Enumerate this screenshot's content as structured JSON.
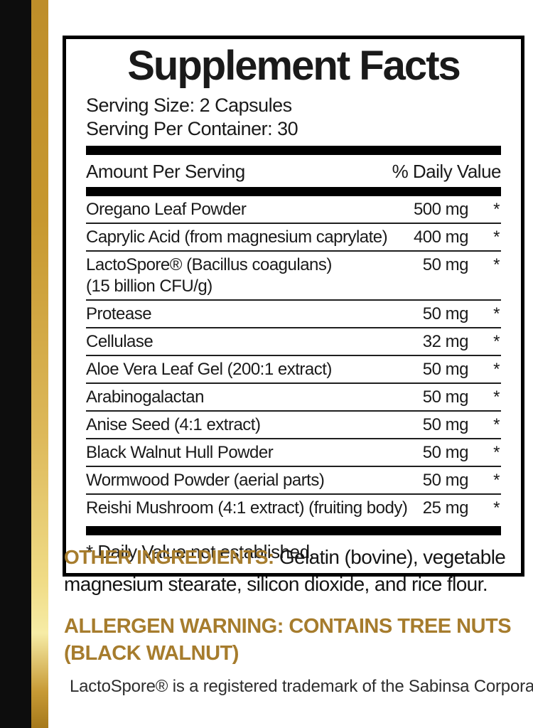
{
  "panel": {
    "title": "Supplement Facts",
    "serving_size": "Serving Size: 2 Capsules",
    "servings_per_container": "Serving Per Container: 30",
    "columns": {
      "left": "Amount Per Serving",
      "right": "% Daily Value"
    },
    "rows": [
      {
        "name": "Oregano Leaf Powder",
        "amount": "500 mg",
        "dv": "*"
      },
      {
        "name": "Caprylic Acid (from magnesium caprylate)",
        "amount": "400 mg",
        "dv": "*"
      },
      {
        "name": "LactoSpore® (Bacillus coagulans)",
        "name2": "(15 billion CFU/g)",
        "amount": "50 mg",
        "dv": "*"
      },
      {
        "name": "Protease",
        "amount": "50 mg",
        "dv": "*"
      },
      {
        "name": "Cellulase",
        "amount": "32 mg",
        "dv": "*"
      },
      {
        "name": "Aloe Vera Leaf Gel (200:1 extract)",
        "amount": "50 mg",
        "dv": "*"
      },
      {
        "name": "Arabinogalactan",
        "amount": "50 mg",
        "dv": "*"
      },
      {
        "name": "Anise Seed (4:1 extract)",
        "amount": "50 mg",
        "dv": "*"
      },
      {
        "name": "Black Walnut Hull Powder",
        "amount": "50 mg",
        "dv": "*"
      },
      {
        "name": "Wormwood Powder (aerial parts)",
        "amount": "50 mg",
        "dv": "*"
      },
      {
        "name": "Reishi Mushroom (4:1 extract) (fruiting body)",
        "amount": "25 mg",
        "dv": "*"
      }
    ],
    "footnote": "* Daily Value not established."
  },
  "other_ingredients": {
    "label": "OTHER INGREDIENTS:",
    "line1_rest": " Gelatin (bovine), vegetable",
    "line2": "magnesium stearate, silicon dioxide, and rice flour."
  },
  "allergen_warning": {
    "line1": "ALLERGEN WARNING: CONTAINS TREE NUTS",
    "line2": "(BLACK WALNUT)"
  },
  "trademark_note": "LactoSpore® is a registered trademark of the Sabinsa Corporation",
  "colors": {
    "gold_heading": "#A67C2D",
    "ink": "#151515",
    "side_bar_black": "#0d0d0d",
    "gold_stripe_top": "#BE8E2A",
    "gold_stripe_light": "#F6ECA6",
    "gold_stripe_bottom": "#A6791B"
  }
}
